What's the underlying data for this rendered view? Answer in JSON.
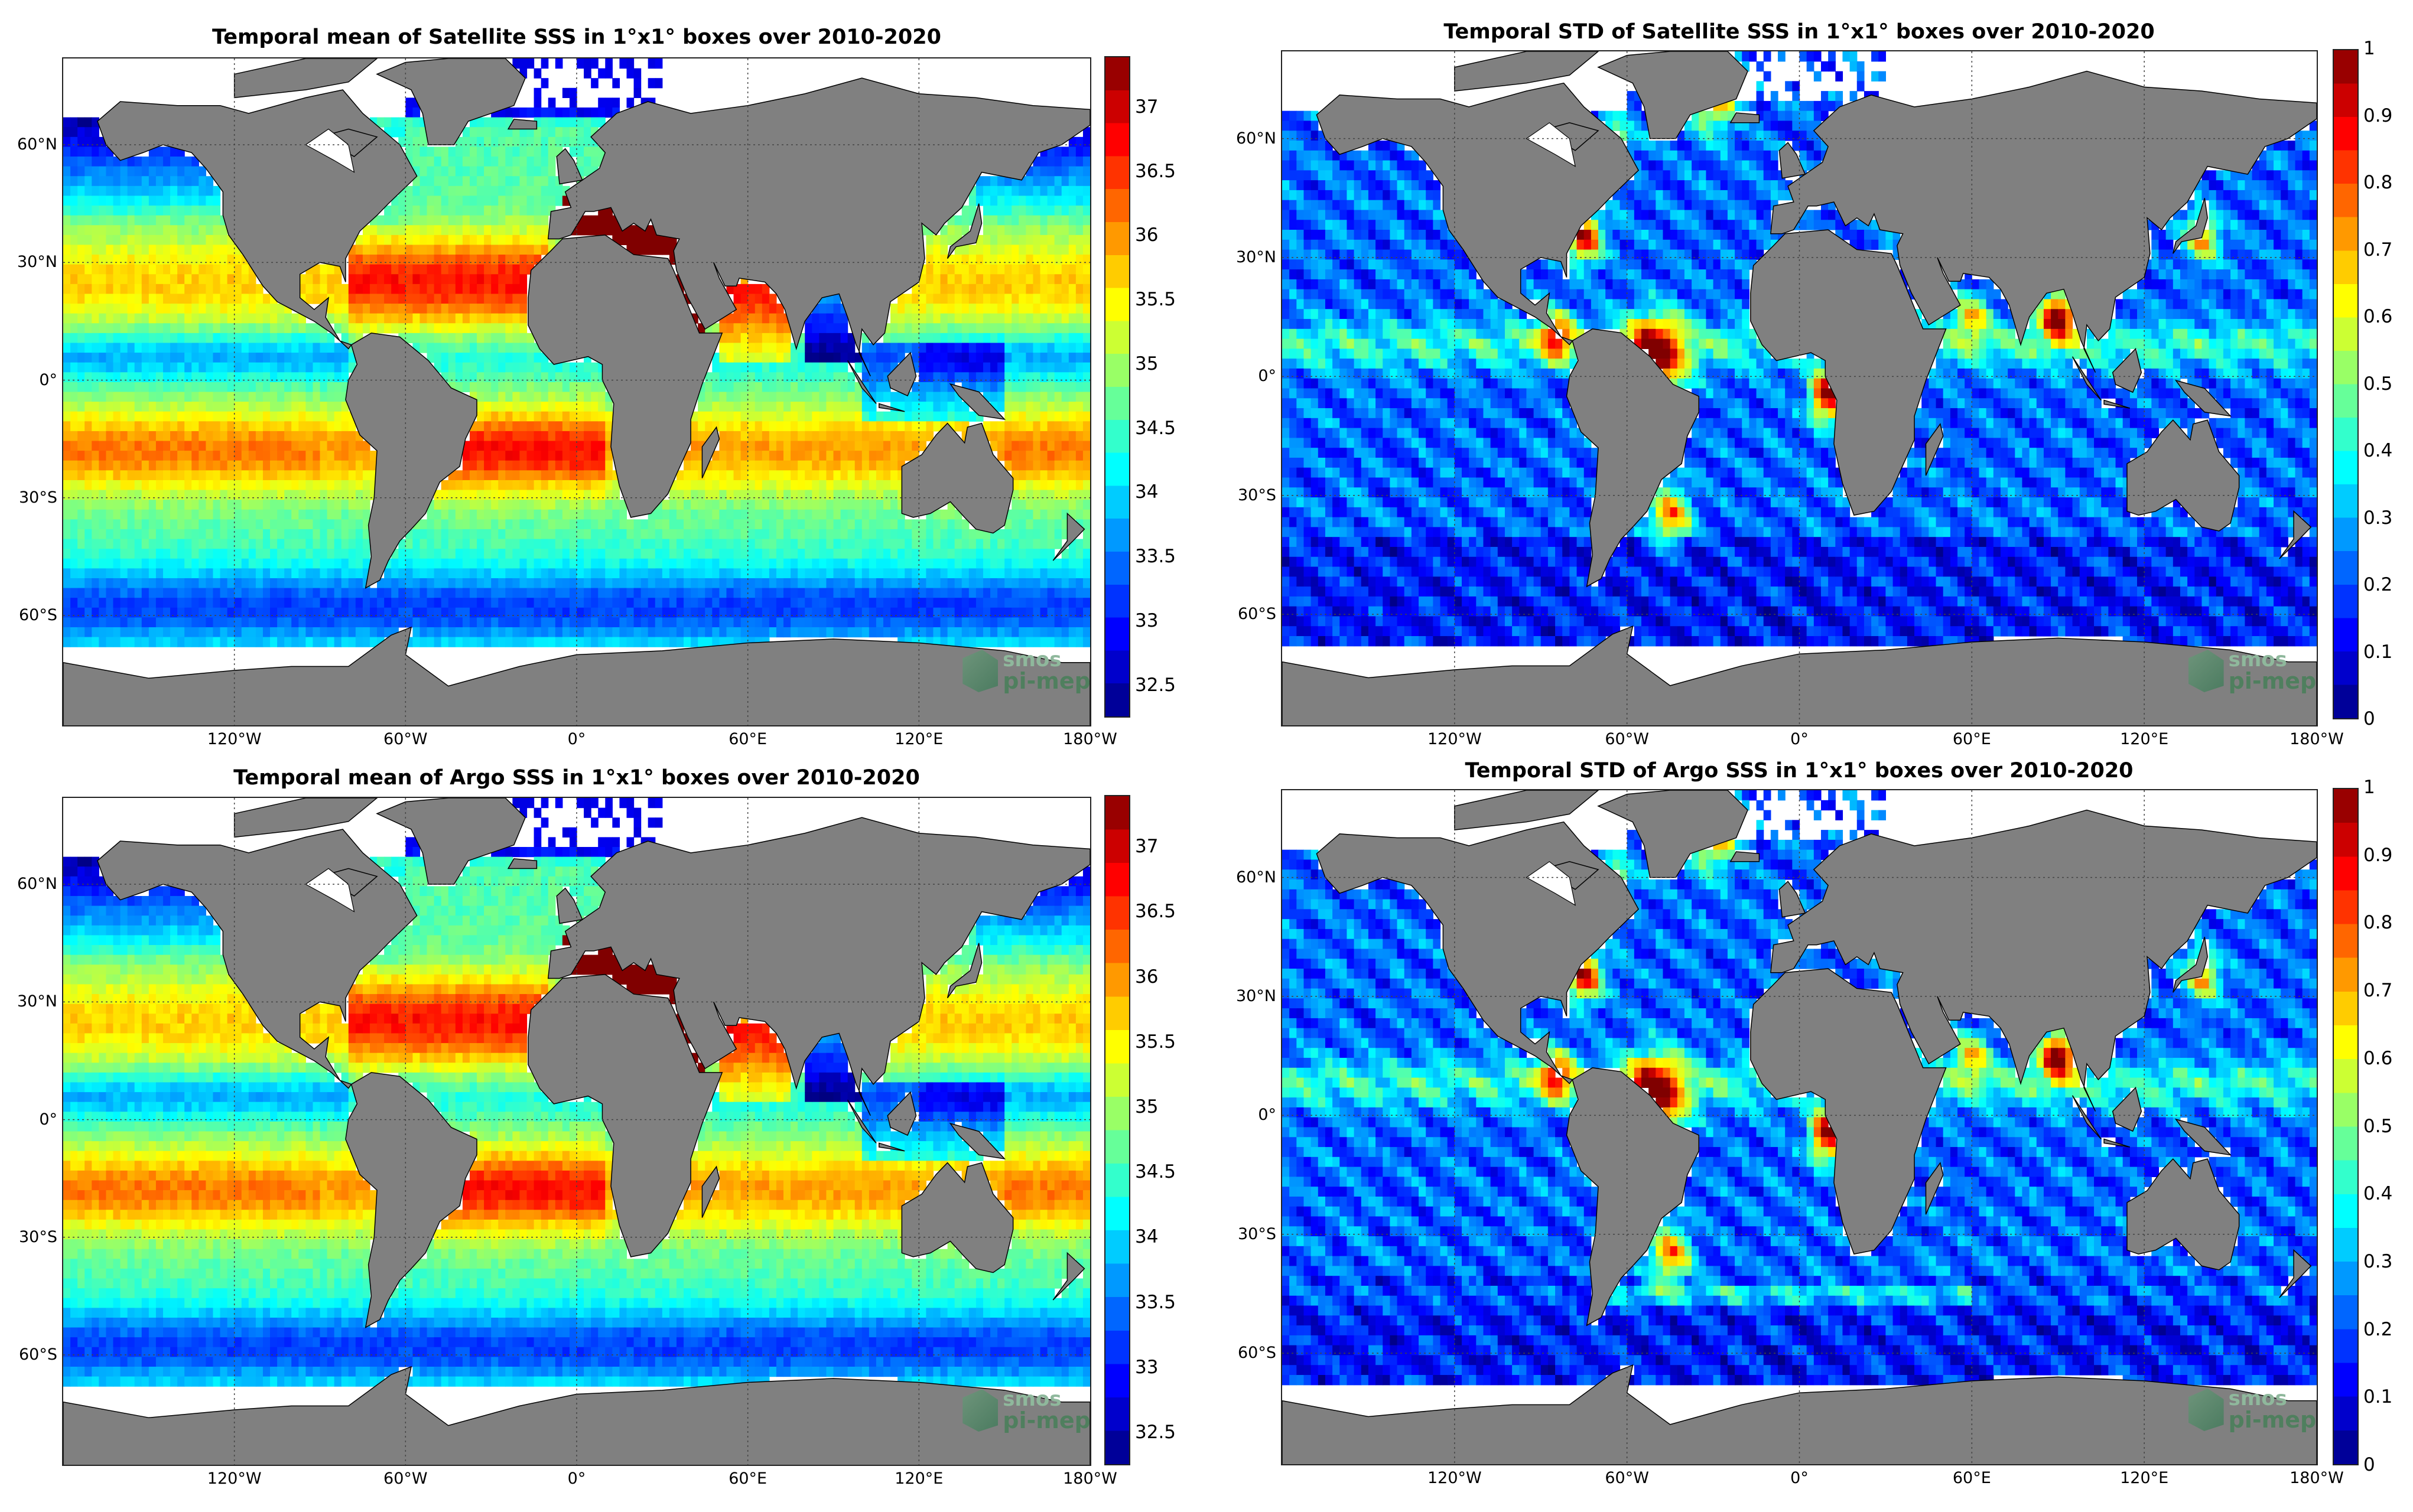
{
  "panels": [
    {
      "title": "Temporal mean of Satellite SSS in 1°x1° boxes over 2010-2020",
      "colorbar": {
        "labels": [
          "37",
          "36.5",
          "36",
          "35.5",
          "35",
          "34.5",
          "34",
          "33.5",
          "33",
          "32.5"
        ],
        "min": 32.25,
        "max": 37.4
      }
    },
    {
      "title": "Temporal STD of Satellite SSS in 1°x1° boxes over 2010-2020",
      "colorbar": {
        "labels": [
          "1",
          "0.9",
          "0.8",
          "0.7",
          "0.6",
          "0.5",
          "0.4",
          "0.3",
          "0.2",
          "0.1",
          "0"
        ],
        "min": 0,
        "max": 1
      }
    },
    {
      "title": "Temporal mean of Argo SSS in 1°x1° boxes over 2010-2020",
      "colorbar": {
        "labels": [
          "37",
          "36.5",
          "36",
          "35.5",
          "35",
          "34.5",
          "34",
          "33.5",
          "33",
          "32.5"
        ],
        "min": 32.25,
        "max": 37.4
      }
    },
    {
      "title": "Temporal STD of Argo SSS in 1°x1° boxes over 2010-2020",
      "colorbar": {
        "labels": [
          "1",
          "0.9",
          "0.8",
          "0.7",
          "0.6",
          "0.5",
          "0.4",
          "0.3",
          "0.2",
          "0.1",
          "0"
        ],
        "min": 0,
        "max": 1
      }
    }
  ],
  "axes": {
    "x_ticks": [
      "120°W",
      "60°W",
      "0°",
      "60°E",
      "120°E",
      "180°W"
    ],
    "y_ticks": [
      "60°N",
      "30°N",
      "0°",
      "30°S",
      "60°S"
    ]
  },
  "logo": {
    "line1": "smos",
    "line2": "pi-mep"
  },
  "colors": {
    "land": "#808080",
    "nodata": "#ffffff",
    "colormap": "jet"
  }
}
